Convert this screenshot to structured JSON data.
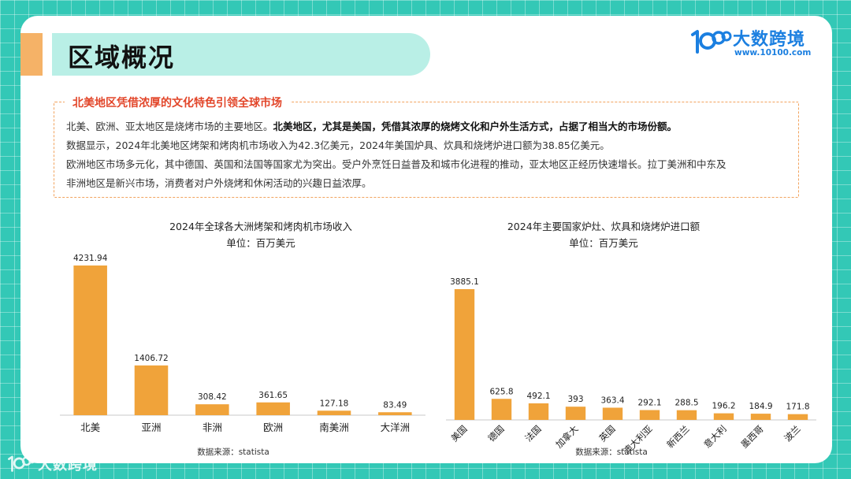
{
  "header": {
    "title": "区域概况",
    "brand_name": "大数跨境",
    "brand_url": "www.10100.com"
  },
  "intro": {
    "heading": "北美地区凭借浓厚的文化特色引领全球市场",
    "line1_plain": "北美、欧洲、亚太地区是烧烤市场的主要地区。",
    "line1_bold": "北美地区，尤其是美国，凭借其浓厚的烧烤文化和户外生活方式，占据了相当大的市场份额。",
    "line2": "数据显示，2024年北美地区烤架和烤肉机市场收入为42.3亿美元，2024年美国炉具、炊具和烧烤炉进口额为38.85亿美元。",
    "line3": "欧洲地区市场多元化，其中德国、英国和法国等国家尤为突出。受户外烹饪日益普及和城市化进程的推动，亚太地区正经历快速增长。拉丁美洲和中东及",
    "line4": "非洲地区是新兴市场，消费者对户外烧烤和休闲活动的兴趣日益浓厚。"
  },
  "colors": {
    "bar": "#f0a33a",
    "background": "#33c8b6",
    "accent_red": "#e2462a",
    "brand_blue": "#1b7fe0"
  },
  "chart_data": [
    {
      "type": "bar",
      "title": "2024年全球各大洲烤架和烤肉机市场收入",
      "subtitle": "单位：百万美元",
      "categories": [
        "北美",
        "亚洲",
        "非洲",
        "欧洲",
        "南美洲",
        "大洋洲"
      ],
      "values": [
        4231.94,
        1406.72,
        308.42,
        361.65,
        127.18,
        83.49
      ],
      "value_labels": [
        "4231.94",
        "1406.72",
        "308.42",
        "361.65",
        "127.18",
        "83.49"
      ],
      "ylim": [
        0,
        4231.94
      ],
      "grid": false,
      "source": "数据来源：statista"
    },
    {
      "type": "bar",
      "title": "2024年主要国家炉灶、炊具和烧烤炉进口额",
      "subtitle": "单位：百万美元",
      "categories": [
        "美国",
        "德国",
        "法国",
        "加拿大",
        "英国",
        "澳大利亚",
        "新西兰",
        "意大利",
        "墨西哥",
        "波兰"
      ],
      "values": [
        3885.1,
        625.8,
        492.1,
        393,
        363.4,
        292.1,
        288.5,
        196.2,
        184.9,
        171.8
      ],
      "value_labels": [
        "3885.1",
        "625.8",
        "492.1",
        "393",
        "363.4",
        "292.1",
        "288.5",
        "196.2",
        "184.9",
        "171.8"
      ],
      "ylim": [
        0,
        3885.1
      ],
      "grid": false,
      "source": "数据来源：statista"
    }
  ],
  "footer": {
    "logo_text": "大数跨境"
  }
}
